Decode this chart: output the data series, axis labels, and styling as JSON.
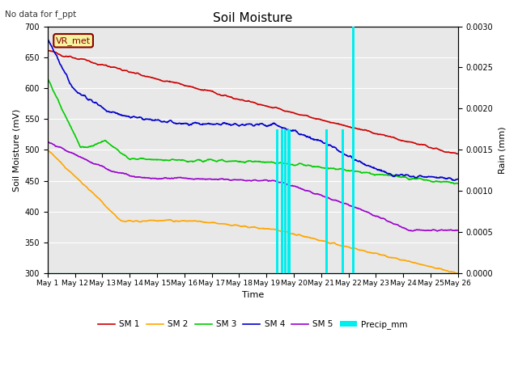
{
  "title": "Soil Moisture",
  "note": "No data for f_ppt",
  "xlabel": "Time",
  "ylabel_left": "Soil Moisture (mV)",
  "ylabel_right": "Rain (mm)",
  "ylim_left": [
    300,
    700
  ],
  "ylim_right": [
    0.0,
    0.003
  ],
  "station_label": "VR_met",
  "background_color": "#e8e8e8",
  "colors": {
    "SM1": "#cc0000",
    "SM2": "#ffa500",
    "SM3": "#00cc00",
    "SM4": "#0000cc",
    "SM5": "#9900cc",
    "Precip": "#00eeee"
  },
  "x_tick_labels": [
    "May 1",
    "May 12",
    "May 13",
    "May 14",
    "May 15",
    "May 16",
    "May 17",
    "May 18",
    "May 19",
    "May 20",
    "May 21",
    "May 22",
    "May 23",
    "May 24",
    "May 25",
    "May 26"
  ],
  "precip_events": [
    [
      14.0,
      0.00175
    ],
    [
      14.3,
      0.00175
    ],
    [
      14.5,
      0.00175
    ],
    [
      14.7,
      0.00175
    ],
    [
      17.0,
      0.00175
    ],
    [
      18.0,
      0.00175
    ],
    [
      18.6,
      0.003
    ]
  ]
}
